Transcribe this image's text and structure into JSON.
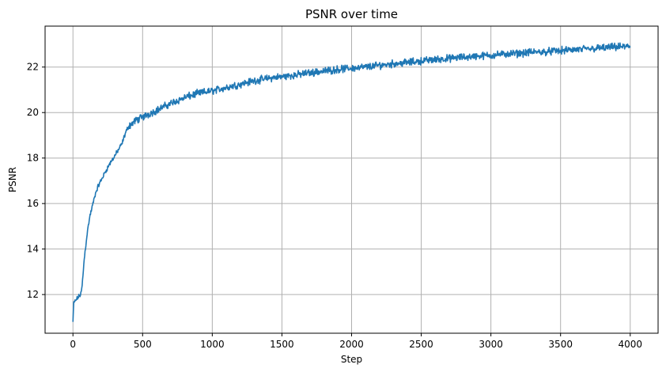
{
  "chart_data": {
    "type": "line",
    "title": "PSNR over time",
    "xlabel": "Step",
    "ylabel": "PSNR",
    "xlim": [
      -200,
      4200
    ],
    "ylim": [
      10.3,
      23.8
    ],
    "xticks": [
      0,
      500,
      1000,
      1500,
      2000,
      2500,
      3000,
      3500,
      4000
    ],
    "yticks": [
      12,
      14,
      16,
      18,
      20,
      22
    ],
    "grid": true,
    "color": "#1f77b4",
    "series": [
      {
        "color": "#1f77b4",
        "points": [
          [
            0,
            10.8
          ],
          [
            5,
            11.6
          ],
          [
            20,
            11.75
          ],
          [
            40,
            11.9
          ],
          [
            55,
            12.0
          ],
          [
            65,
            12.3
          ],
          [
            80,
            13.5
          ],
          [
            100,
            14.6
          ],
          [
            120,
            15.4
          ],
          [
            140,
            15.9
          ],
          [
            160,
            16.4
          ],
          [
            180,
            16.75
          ],
          [
            200,
            17.0
          ],
          [
            250,
            17.6
          ],
          [
            300,
            18.1
          ],
          [
            350,
            18.6
          ],
          [
            380,
            19.15
          ],
          [
            400,
            19.4
          ],
          [
            450,
            19.65
          ],
          [
            500,
            19.8
          ],
          [
            600,
            20.1
          ],
          [
            700,
            20.4
          ],
          [
            800,
            20.65
          ],
          [
            900,
            20.85
          ],
          [
            1000,
            20.95
          ],
          [
            1100,
            21.1
          ],
          [
            1200,
            21.25
          ],
          [
            1300,
            21.4
          ],
          [
            1400,
            21.5
          ],
          [
            1500,
            21.58
          ],
          [
            1600,
            21.65
          ],
          [
            1700,
            21.75
          ],
          [
            1800,
            21.82
          ],
          [
            1900,
            21.9
          ],
          [
            2000,
            21.95
          ],
          [
            2100,
            22.0
          ],
          [
            2200,
            22.08
          ],
          [
            2300,
            22.15
          ],
          [
            2400,
            22.2
          ],
          [
            2500,
            22.27
          ],
          [
            2600,
            22.33
          ],
          [
            2700,
            22.38
          ],
          [
            2800,
            22.43
          ],
          [
            2900,
            22.48
          ],
          [
            3000,
            22.52
          ],
          [
            3100,
            22.57
          ],
          [
            3200,
            22.6
          ],
          [
            3300,
            22.65
          ],
          [
            3400,
            22.68
          ],
          [
            3500,
            22.72
          ],
          [
            3600,
            22.76
          ],
          [
            3700,
            22.8
          ],
          [
            3800,
            22.84
          ],
          [
            3900,
            22.88
          ],
          [
            4000,
            22.9
          ]
        ],
        "noise_amplitude": 0.2
      }
    ]
  }
}
